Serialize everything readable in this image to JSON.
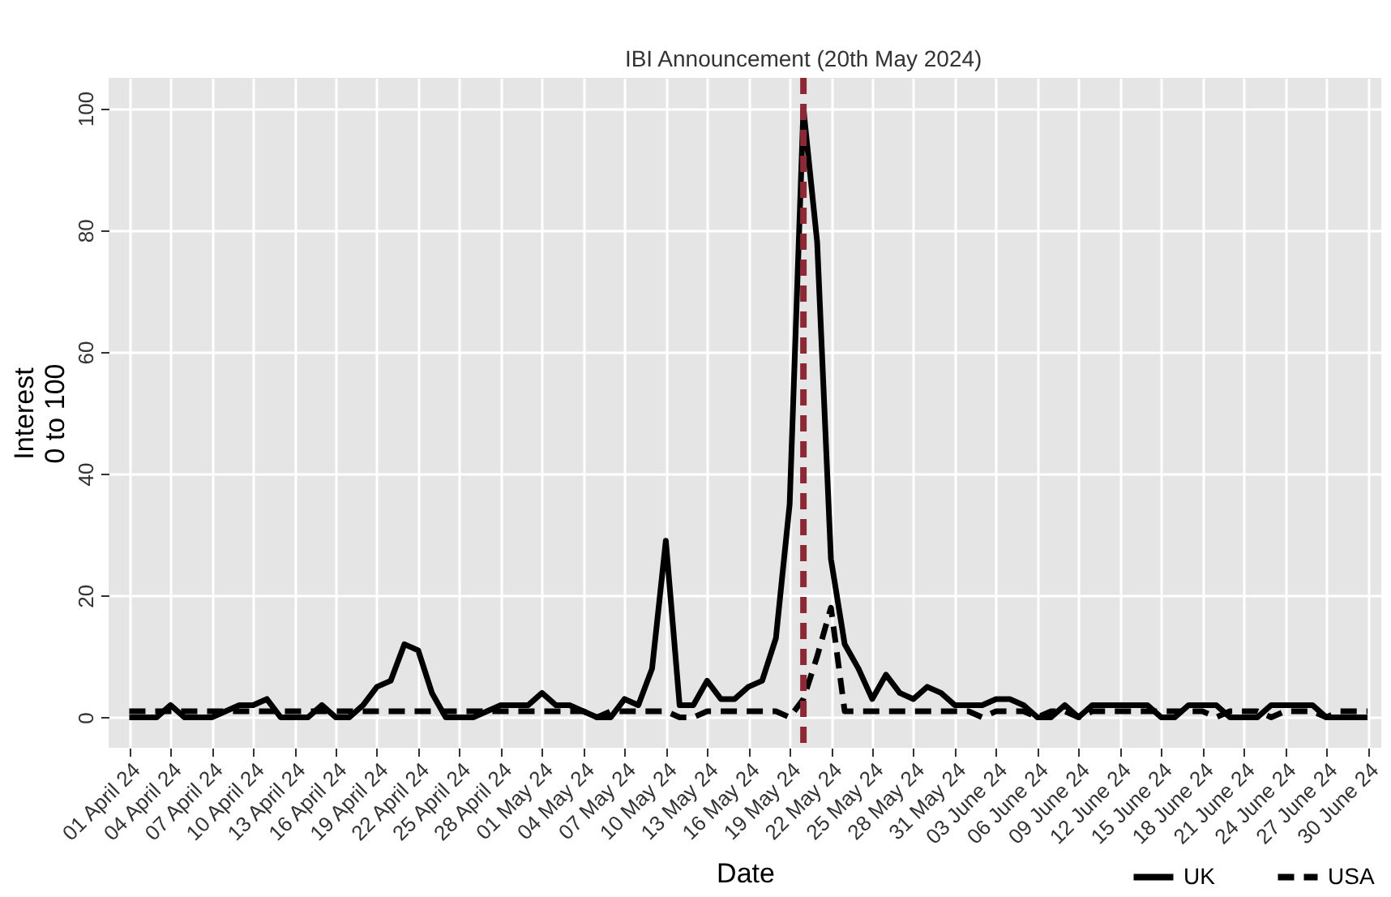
{
  "chart_data": {
    "type": "line",
    "xlabel": "Date",
    "ylabel": "Interest\n0 to 100",
    "xlim": [
      "2024-03-30T12:00",
      "2024-07-01"
    ],
    "ylim": [
      -5,
      105
    ],
    "yticks": [
      0,
      20,
      40,
      60,
      80,
      100
    ],
    "xticks": [
      {
        "value": "2024-04-01",
        "label": "01 April 24"
      },
      {
        "value": "2024-04-04",
        "label": "04 April 24"
      },
      {
        "value": "2024-04-07",
        "label": "07 April 24"
      },
      {
        "value": "2024-04-10",
        "label": "10 April 24"
      },
      {
        "value": "2024-04-13",
        "label": "13 April 24"
      },
      {
        "value": "2024-04-16",
        "label": "16 April 24"
      },
      {
        "value": "2024-04-19",
        "label": "19 April 24"
      },
      {
        "value": "2024-04-22",
        "label": "22 April 24"
      },
      {
        "value": "2024-04-25",
        "label": "25 April 24"
      },
      {
        "value": "2024-04-28",
        "label": "28 April 24"
      },
      {
        "value": "2024-05-01",
        "label": "01 May 24"
      },
      {
        "value": "2024-05-04",
        "label": "04 May 24"
      },
      {
        "value": "2024-05-07",
        "label": "07 May 24"
      },
      {
        "value": "2024-05-10",
        "label": "10 May 24"
      },
      {
        "value": "2024-05-13",
        "label": "13 May 24"
      },
      {
        "value": "2024-05-16",
        "label": "16 May 24"
      },
      {
        "value": "2024-05-19",
        "label": "19 May 24"
      },
      {
        "value": "2024-05-22",
        "label": "22 May 24"
      },
      {
        "value": "2024-05-25",
        "label": "25 May 24"
      },
      {
        "value": "2024-05-28",
        "label": "28 May 24"
      },
      {
        "value": "2024-05-31",
        "label": "31 May 24"
      },
      {
        "value": "2024-06-03",
        "label": "03 June 24"
      },
      {
        "value": "2024-06-06",
        "label": "06 June 24"
      },
      {
        "value": "2024-06-09",
        "label": "09 June 24"
      },
      {
        "value": "2024-06-12",
        "label": "12 June 24"
      },
      {
        "value": "2024-06-15",
        "label": "15 June 24"
      },
      {
        "value": "2024-06-18",
        "label": "18 June 24"
      },
      {
        "value": "2024-06-21",
        "label": "21 June 24"
      },
      {
        "value": "2024-06-24",
        "label": "24 June 24"
      },
      {
        "value": "2024-06-27",
        "label": "27 June 24"
      },
      {
        "value": "2024-06-30",
        "label": "30 June 24"
      }
    ],
    "x": [
      "2024-04-01",
      "2024-04-02",
      "2024-04-03",
      "2024-04-04",
      "2024-04-05",
      "2024-04-06",
      "2024-04-07",
      "2024-04-08",
      "2024-04-09",
      "2024-04-10",
      "2024-04-11",
      "2024-04-12",
      "2024-04-13",
      "2024-04-14",
      "2024-04-15",
      "2024-04-16",
      "2024-04-17",
      "2024-04-18",
      "2024-04-19",
      "2024-04-20",
      "2024-04-21",
      "2024-04-22",
      "2024-04-23",
      "2024-04-24",
      "2024-04-25",
      "2024-04-26",
      "2024-04-27",
      "2024-04-28",
      "2024-04-29",
      "2024-04-30",
      "2024-05-01",
      "2024-05-02",
      "2024-05-03",
      "2024-05-04",
      "2024-05-05",
      "2024-05-06",
      "2024-05-07",
      "2024-05-08",
      "2024-05-09",
      "2024-05-10",
      "2024-05-11",
      "2024-05-12",
      "2024-05-13",
      "2024-05-14",
      "2024-05-15",
      "2024-05-16",
      "2024-05-17",
      "2024-05-18",
      "2024-05-19",
      "2024-05-20",
      "2024-05-21",
      "2024-05-22",
      "2024-05-23",
      "2024-05-24",
      "2024-05-25",
      "2024-05-26",
      "2024-05-27",
      "2024-05-28",
      "2024-05-29",
      "2024-05-30",
      "2024-05-31",
      "2024-06-01",
      "2024-06-02",
      "2024-06-03",
      "2024-06-04",
      "2024-06-05",
      "2024-06-06",
      "2024-06-07",
      "2024-06-08",
      "2024-06-09",
      "2024-06-10",
      "2024-06-11",
      "2024-06-12",
      "2024-06-13",
      "2024-06-14",
      "2024-06-15",
      "2024-06-16",
      "2024-06-17",
      "2024-06-18",
      "2024-06-19",
      "2024-06-20",
      "2024-06-21",
      "2024-06-22",
      "2024-06-23",
      "2024-06-24",
      "2024-06-25",
      "2024-06-26",
      "2024-06-27",
      "2024-06-28",
      "2024-06-29",
      "2024-06-30"
    ],
    "series": [
      {
        "name": "UK",
        "color": "#000000",
        "line_style": "solid",
        "values": [
          0,
          0,
          0,
          2,
          0,
          0,
          0,
          1,
          2,
          2,
          3,
          0,
          0,
          0,
          2,
          0,
          0,
          2,
          5,
          6,
          12,
          11,
          4,
          0,
          0,
          0,
          1,
          2,
          2,
          2,
          4,
          2,
          2,
          1,
          0,
          0,
          3,
          2,
          8,
          29,
          2,
          2,
          6,
          3,
          3,
          5,
          6,
          13,
          35,
          100,
          78,
          26,
          12,
          8,
          3,
          7,
          4,
          3,
          5,
          4,
          2,
          2,
          2,
          3,
          3,
          2,
          0,
          0,
          2,
          0,
          2,
          2,
          2,
          2,
          2,
          0,
          0,
          2,
          2,
          2,
          0,
          0,
          0,
          2,
          2,
          2,
          2,
          0,
          0,
          0,
          0
        ]
      },
      {
        "name": "USA",
        "color": "#000000",
        "line_style": "dashed",
        "values": [
          1,
          1,
          1,
          1,
          1,
          1,
          1,
          1,
          1,
          1,
          1,
          1,
          1,
          1,
          1,
          1,
          1,
          1,
          1,
          1,
          1,
          1,
          1,
          1,
          1,
          1,
          1,
          1,
          1,
          1,
          1,
          1,
          1,
          1,
          0,
          1,
          1,
          1,
          1,
          1,
          0,
          0,
          1,
          1,
          1,
          1,
          1,
          1,
          0,
          3,
          10,
          18,
          1,
          1,
          1,
          1,
          1,
          1,
          1,
          1,
          1,
          1,
          0,
          1,
          1,
          1,
          0,
          1,
          1,
          0,
          1,
          1,
          1,
          1,
          1,
          1,
          1,
          1,
          1,
          0,
          1,
          1,
          1,
          0,
          1,
          1,
          1,
          0,
          1,
          1,
          1
        ]
      }
    ],
    "ref_lines": [
      {
        "axis": "x",
        "value": "2024-05-20",
        "label": "IBI Announcement (20th May 2024)",
        "color": "#8b2a35",
        "line_style": "dashed"
      }
    ],
    "grid": true,
    "legend": "bottom right"
  }
}
